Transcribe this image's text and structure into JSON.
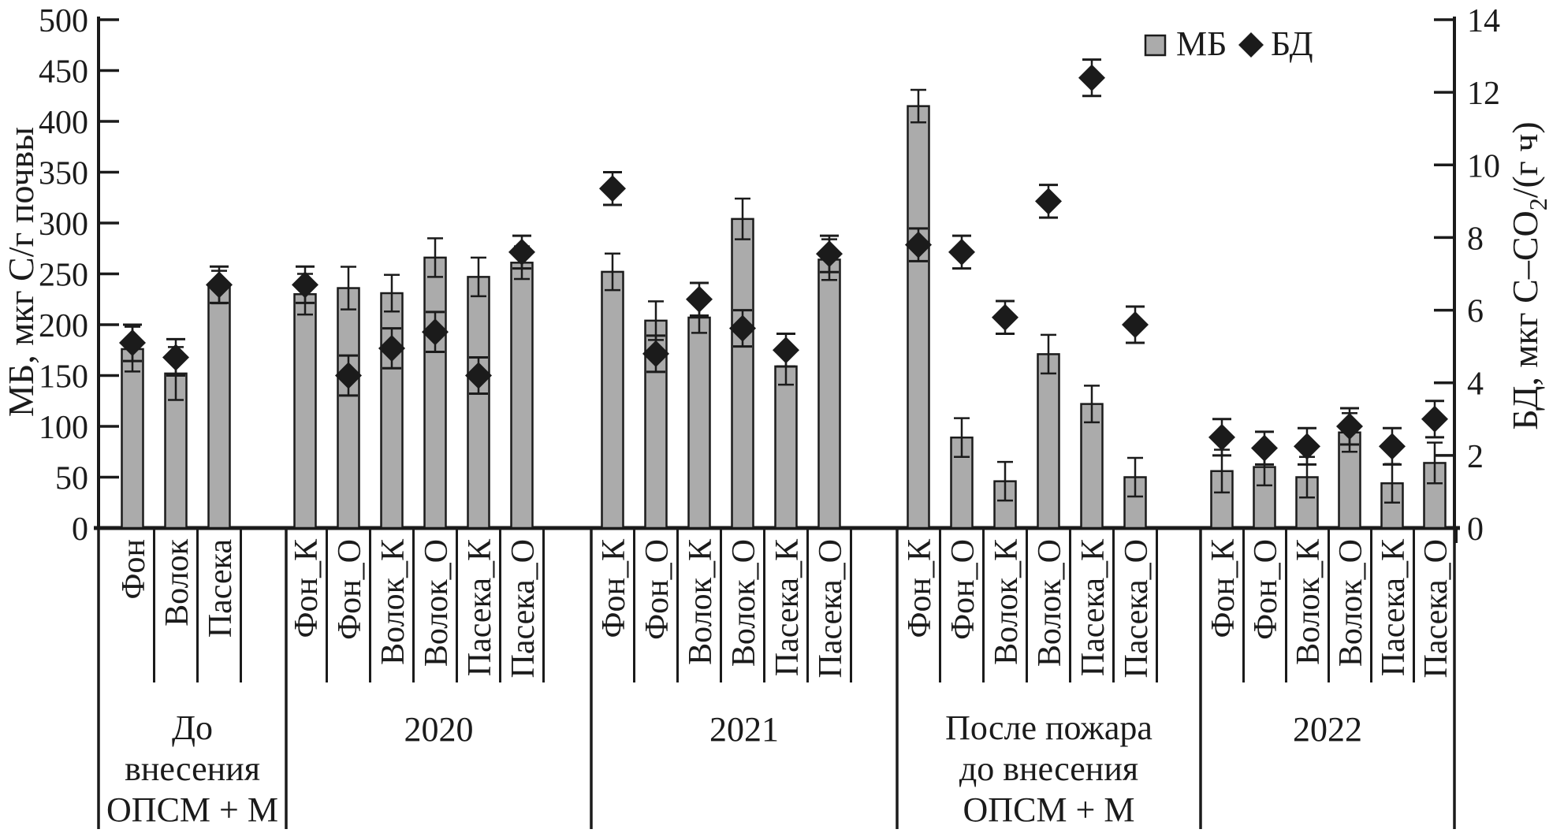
{
  "colors": {
    "bar_fill": "#ababab",
    "ink": "#1b1b1b",
    "background": "#ffffff"
  },
  "legend": {
    "mb_label": "МБ",
    "bd_label": "БД"
  },
  "axes": {
    "left_title": "МБ, мкг С/г почвы",
    "right_title_prefix": "БД, мкг С–CO",
    "right_title_sub": "2",
    "right_title_suffix": "/(г ч)",
    "left_ticks": [
      500,
      450,
      400,
      350,
      300,
      250,
      200,
      150,
      100,
      50,
      0
    ],
    "right_ticks": [
      14,
      12,
      10,
      8,
      6,
      4,
      2,
      0
    ]
  },
  "chart_data": {
    "type": "bar",
    "dual_axis": true,
    "series": [
      {
        "name": "МБ",
        "type": "bar",
        "axis": "left"
      },
      {
        "name": "БД",
        "type": "scatter-diamond",
        "axis": "right"
      }
    ],
    "left_axis_label": "МБ, мкг С/г почвы",
    "right_axis_label": "БД, мкг С–CO2/(г ч)",
    "left_axis_range": [
      0,
      500
    ],
    "right_axis_range": [
      0,
      14
    ],
    "grid": false,
    "legend_position": "top-right",
    "groups": [
      {
        "label_lines": [
          "До",
          "внесения",
          "ОПСМ + М"
        ],
        "bars": [
          {
            "category": "Фон",
            "mb": 176,
            "mb_err": 22,
            "bd": 5.1,
            "bd_err": 0.5
          },
          {
            "category": "Волок",
            "mb": 152,
            "mb_err": 26,
            "bd": 4.7,
            "bd_err": 0.5
          },
          {
            "category": "Пасека",
            "mb": 237,
            "mb_err": 16,
            "bd": 6.7,
            "bd_err": 0.5
          }
        ]
      },
      {
        "label_lines": [
          "2020"
        ],
        "bars": [
          {
            "category": "Фон_К",
            "mb": 230,
            "mb_err": 20,
            "bd": 6.7,
            "bd_err": 0.5
          },
          {
            "category": "Фон_О",
            "mb": 236,
            "mb_err": 21,
            "bd": 4.2,
            "bd_err": 0.55
          },
          {
            "category": "Волок_К",
            "mb": 231,
            "mb_err": 18,
            "bd": 4.95,
            "bd_err": 0.55
          },
          {
            "category": "Волок_О",
            "mb": 266,
            "mb_err": 19,
            "bd": 5.4,
            "bd_err": 0.55
          },
          {
            "category": "Пасека_К",
            "mb": 247,
            "mb_err": 19,
            "bd": 4.2,
            "bd_err": 0.5
          },
          {
            "category": "Пасека_О",
            "mb": 261,
            "mb_err": 16,
            "bd": 7.6,
            "bd_err": 0.45
          }
        ]
      },
      {
        "label_lines": [
          "2021"
        ],
        "bars": [
          {
            "category": "Фон_К",
            "mb": 252,
            "mb_err": 18,
            "bd": 9.35,
            "bd_err": 0.45
          },
          {
            "category": "Фон_О",
            "mb": 204,
            "mb_err": 19,
            "bd": 4.8,
            "bd_err": 0.5
          },
          {
            "category": "Волок_К",
            "mb": 207,
            "mb_err": 15,
            "bd": 6.3,
            "bd_err": 0.45
          },
          {
            "category": "Волок_О",
            "mb": 304,
            "mb_err": 20,
            "bd": 5.5,
            "bd_err": 0.5
          },
          {
            "category": "Пасека_К",
            "mb": 159,
            "mb_err": 18,
            "bd": 4.9,
            "bd_err": 0.45
          },
          {
            "category": "Пасека_О",
            "mb": 264,
            "mb_err": 20,
            "bd": 7.55,
            "bd_err": 0.5
          }
        ]
      },
      {
        "label_lines": [
          "После пожара",
          "до внесения",
          "ОПСМ + М"
        ],
        "bars": [
          {
            "category": "Фон_К",
            "mb": 415,
            "mb_err": 16,
            "bd": 7.8,
            "bd_err": 0.45
          },
          {
            "category": "Фон_О",
            "mb": 89,
            "mb_err": 19,
            "bd": 7.6,
            "bd_err": 0.45
          },
          {
            "category": "Волок_К",
            "mb": 46,
            "mb_err": 19,
            "bd": 5.8,
            "bd_err": 0.45
          },
          {
            "category": "Волок_О",
            "mb": 171,
            "mb_err": 19,
            "bd": 9.0,
            "bd_err": 0.45
          },
          {
            "category": "Пасека_К",
            "mb": 122,
            "mb_err": 18,
            "bd": 12.4,
            "bd_err": 0.5
          },
          {
            "category": "Пасека_О",
            "mb": 50,
            "mb_err": 19,
            "bd": 5.6,
            "bd_err": 0.5
          }
        ]
      },
      {
        "label_lines": [
          "2022"
        ],
        "bars": [
          {
            "category": "Фон_К",
            "mb": 56,
            "mb_err": 21,
            "bd": 2.5,
            "bd_err": 0.5
          },
          {
            "category": "Фон_О",
            "mb": 60,
            "mb_err": 18,
            "bd": 2.2,
            "bd_err": 0.45
          },
          {
            "category": "Волок_К",
            "mb": 50,
            "mb_err": 20,
            "bd": 2.25,
            "bd_err": 0.5
          },
          {
            "category": "Волок_О",
            "mb": 94,
            "mb_err": 19,
            "bd": 2.8,
            "bd_err": 0.5
          },
          {
            "category": "Пасека_К",
            "mb": 44,
            "mb_err": 19,
            "bd": 2.25,
            "bd_err": 0.5
          },
          {
            "category": "Пасека_О",
            "mb": 64,
            "mb_err": 20,
            "bd": 3.0,
            "bd_err": 0.5
          }
        ]
      }
    ]
  }
}
